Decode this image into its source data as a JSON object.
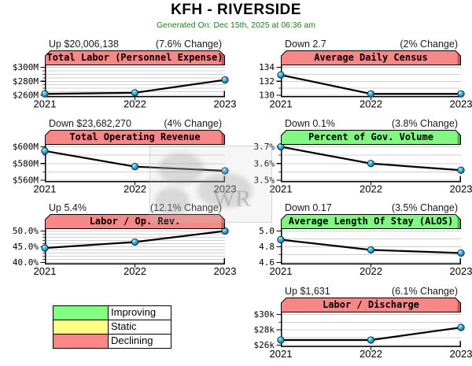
{
  "page": {
    "title": "KFH - RIVERSIDE",
    "subtitle": "Generated On: Dec 15th, 2025 at 06:36 am",
    "subtitle_color": "#1f7a1f"
  },
  "watermark_text": "WR",
  "legend": {
    "items": [
      {
        "label": "Improving",
        "color": "#82ff82"
      },
      {
        "label": "Static",
        "color": "#ffff84"
      },
      {
        "label": "Declining",
        "color": "#ff8686"
      }
    ]
  },
  "chart_data": [
    {
      "type": "line",
      "row": 0,
      "column": 0,
      "status_left": "Up $20,006,138",
      "status_right": "(7.6% Change)",
      "title": "Total Labor (Personnel Expense)",
      "trend": "declining",
      "header_color": "#f88888",
      "header_edge": "#c85555",
      "x": [
        "2021",
        "2022",
        "2023"
      ],
      "yticks": [
        {
          "label": "$300M",
          "value": 300
        },
        {
          "label": "$280M",
          "value": 280
        },
        {
          "label": "$260M",
          "value": 260
        }
      ],
      "minor_step": 5,
      "values": [
        262.0,
        263.5,
        282.0
      ],
      "grid": true,
      "legend_position": "none"
    },
    {
      "type": "line",
      "row": 0,
      "column": 1,
      "status_left": "Down 2.7",
      "status_right": "(2% Change)",
      "title": "Average Daily Census",
      "trend": "declining",
      "header_color": "#f88888",
      "header_edge": "#c85555",
      "x": [
        "2021",
        "2022",
        "2023"
      ],
      "yticks": [
        {
          "label": "134",
          "value": 134
        },
        {
          "label": "132",
          "value": 132
        },
        {
          "label": "130",
          "value": 130
        }
      ],
      "minor_step": 1,
      "values": [
        132.9,
        130.2,
        130.2
      ],
      "grid": true,
      "legend_position": "none"
    },
    {
      "type": "line",
      "row": 1,
      "column": 0,
      "status_left": "Down $23,682,270",
      "status_right": "(4% Change)",
      "title": "Total Operating Revenue",
      "trend": "declining",
      "header_color": "#f88888",
      "header_edge": "#c85555",
      "x": [
        "2021",
        "2022",
        "2023"
      ],
      "yticks": [
        {
          "label": "$600M",
          "value": 600
        },
        {
          "label": "$580M",
          "value": 580
        },
        {
          "label": "$560M",
          "value": 560
        }
      ],
      "minor_step": 10,
      "values": [
        595.0,
        576.3,
        571.3
      ],
      "grid": true,
      "legend_position": "none"
    },
    {
      "type": "line",
      "row": 1,
      "column": 1,
      "status_left": "Down 0.1%",
      "status_right": "(3.8% Change)",
      "title": "Percent of Gov. Volume",
      "trend": "improving",
      "header_color": "#82f882",
      "header_edge": "#4ab24a",
      "x": [
        "2021",
        "2022",
        "2023"
      ],
      "yticks": [
        {
          "label": "3.7%",
          "value": 3.7
        },
        {
          "label": "3.6%",
          "value": 3.6
        },
        {
          "label": "3.5%",
          "value": 3.5
        }
      ],
      "minor_step": 0.05,
      "values": [
        3.7,
        3.6,
        3.56
      ],
      "grid": true,
      "legend_position": "none"
    },
    {
      "type": "line",
      "row": 2,
      "column": 0,
      "status_left": "Up 5.4%",
      "status_right": "(12.1% Change)",
      "title": "Labor / Op. Rev.",
      "trend": "declining",
      "header_color": "#f88888",
      "header_edge": "#c85555",
      "x": [
        "2021",
        "2022",
        "2023"
      ],
      "yticks": [
        {
          "label": "50.0%",
          "value": 50
        },
        {
          "label": "45.0%",
          "value": 45
        },
        {
          "label": "40.0%",
          "value": 40
        }
      ],
      "minor_step": 1,
      "values": [
        44.6,
        46.5,
        50.0
      ],
      "grid": true,
      "legend_position": "none"
    },
    {
      "type": "line",
      "row": 2,
      "column": 1,
      "status_left": "Down 0.17",
      "status_right": "(3.5% Change)",
      "title": "Average Length Of Stay (ALOS)",
      "trend": "improving",
      "header_color": "#82f882",
      "header_edge": "#4ab24a",
      "x": [
        "2021",
        "2022",
        "2023"
      ],
      "yticks": [
        {
          "label": "5.0",
          "value": 5.0
        },
        {
          "label": "4.8",
          "value": 4.8
        },
        {
          "label": "4.6",
          "value": 4.6
        }
      ],
      "minor_step": 0.1,
      "values": [
        4.89,
        4.76,
        4.72
      ],
      "grid": true,
      "legend_position": "none"
    },
    {
      "type": "line",
      "row": 3,
      "column": 1,
      "status_left": "Up $1,631",
      "status_right": "(6.1% Change)",
      "title": "Labor / Discharge",
      "trend": "declining",
      "header_color": "#f88888",
      "header_edge": "#c85555",
      "x": [
        "2021",
        "2022",
        "2023"
      ],
      "yticks": [
        {
          "label": "$30k",
          "value": 30
        },
        {
          "label": "$28k",
          "value": 28
        },
        {
          "label": "$26k",
          "value": 26
        }
      ],
      "minor_step": 1,
      "values": [
        26.67,
        26.67,
        28.3
      ],
      "grid": true,
      "legend_position": "none"
    }
  ]
}
